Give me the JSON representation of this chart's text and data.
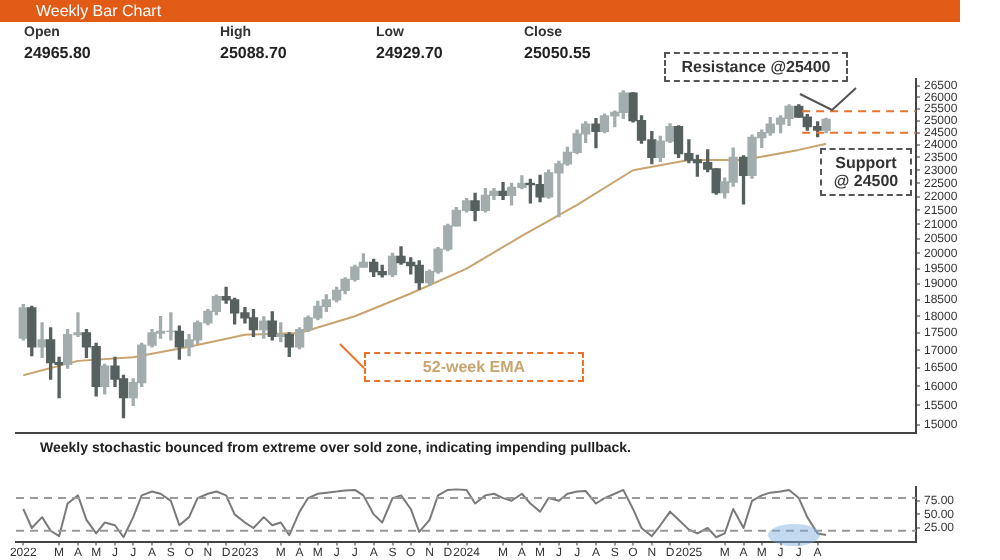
{
  "chart_data": [
    {
      "type": "candlestick",
      "title": "Weekly Bar Chart",
      "colors": [
        "#a3adad",
        "#56605f",
        "#a3adad",
        "#56605f",
        "#56605f",
        "#a3adad",
        "#a3adad",
        "#56605f",
        "#56605f",
        "#a3adad",
        "#56605f",
        "#56605f",
        "#a3adad",
        "#a3adad",
        "#a3adad",
        "#a3adad",
        "#a3adad",
        "#56605f",
        "#a3adad",
        "#a3adad",
        "#a3adad",
        "#a3adad",
        "#56605f",
        "#56605f",
        "#56605f",
        "#56605f",
        "#a3adad",
        "#56605f",
        "#a3adad",
        "#56605f",
        "#a3adad",
        "#a3adad",
        "#a3adad",
        "#a3adad",
        "#a3adad",
        "#a3adad",
        "#a3adad",
        "#a3adad",
        "#56605f",
        "#56605f",
        "#a3adad",
        "#56605f",
        "#56605f",
        "#56605f",
        "#a3adad",
        "#a3adad",
        "#a3adad",
        "#a3adad",
        "#a3adad",
        "#56605f",
        "#a3adad",
        "#a3adad",
        "#56605f",
        "#a3adad",
        "#a3adad",
        "#56605f",
        "#56605f",
        "#a3adad",
        "#a3adad",
        "#a3adad",
        "#a3adad",
        "#a3adad",
        "#56605f",
        "#a3adad",
        "#a3adad",
        "#a3adad",
        "#56605f",
        "#56605f",
        "#56605f",
        "#a3adad",
        "#a3adad",
        "#56605f",
        "#56605f",
        "#56605f",
        "#56605f",
        "#56605f",
        "#a3adad",
        "#a3adad",
        "#56605f",
        "#a3adad",
        "#a3adad",
        "#a3adad",
        "#a3adad",
        "#a3adad",
        "#56605f",
        "#56605f",
        "#56605f",
        "#a3adad"
      ],
      "log": "y",
      "tick_labels": "y",
      "grid": false,
      "legend": false,
      "annotations": [
        "Open",
        "High",
        "Low",
        "Close",
        "24965.80",
        "25088.70",
        "24929.70",
        "25050.55"
      ],
      "x": [
        "2022-01-01",
        "2022-01-15",
        "2022-02-01",
        "2022-02-15",
        "2022-03-01",
        "2022-03-15",
        "2022-04-01",
        "2022-04-15",
        "2022-05-01",
        "2022-05-15",
        "2022-06-01",
        "2022-06-15",
        "2022-07-01",
        "2022-07-15",
        "2022-08-01",
        "2022-08-15",
        "2022-09-01",
        "2022-09-15",
        "2022-10-01",
        "2022-10-15",
        "2022-11-01",
        "2022-11-15",
        "2022-12-01",
        "2022-12-15",
        "2023-01-01",
        "2023-01-15",
        "2023-02-01",
        "2023-02-15",
        "2023-03-01",
        "2023-03-15",
        "2023-04-01",
        "2023-04-15",
        "2023-05-01",
        "2023-05-15",
        "2023-06-01",
        "2023-06-15",
        "2023-07-01",
        "2023-07-15",
        "2023-08-01",
        "2023-08-15",
        "2023-09-01",
        "2023-09-15",
        "2023-10-01",
        "2023-10-15",
        "2023-11-01",
        "2023-11-15",
        "2023-12-01",
        "2023-12-15",
        "2024-01-01",
        "2024-01-15",
        "2024-02-01",
        "2024-02-15",
        "2024-03-01",
        "2024-03-15",
        "2024-04-01",
        "2024-04-15",
        "2024-05-01",
        "2024-05-15",
        "2024-06-01",
        "2024-06-15",
        "2024-07-01",
        "2024-07-15",
        "2024-08-01",
        "2024-08-15",
        "2024-09-01",
        "2024-09-15",
        "2024-10-01",
        "2024-10-15",
        "2024-11-01",
        "2024-11-15",
        "2024-12-01",
        "2024-12-15",
        "2025-01-01",
        "2025-01-15",
        "2025-02-01",
        "2025-02-15",
        "2025-03-01",
        "2025-03-15",
        "2025-04-01",
        "2025-04-15",
        "2025-05-01",
        "2025-05-15",
        "2025-06-01",
        "2025-06-15",
        "2025-07-01",
        "2025-07-15",
        "2025-08-01",
        "2025-08-15"
      ],
      "ohlc": [
        [
          17350,
          18350,
          17300,
          18250
        ],
        [
          18250,
          18300,
          16850,
          17100
        ],
        [
          17100,
          17800,
          16800,
          17300
        ],
        [
          17300,
          17650,
          16200,
          16650
        ],
        [
          16650,
          16800,
          15700,
          16600
        ],
        [
          16600,
          17600,
          16500,
          17450
        ],
        [
          17450,
          18100,
          17400,
          17500
        ],
        [
          17500,
          17600,
          16800,
          17100
        ],
        [
          17100,
          17200,
          15750,
          16000
        ],
        [
          16000,
          16600,
          15800,
          16550
        ],
        [
          16550,
          16800,
          16000,
          16200
        ],
        [
          16200,
          16300,
          15180,
          15700
        ],
        [
          15700,
          16200,
          15500,
          16100
        ],
        [
          16100,
          17200,
          16000,
          17150
        ],
        [
          17150,
          17600,
          17100,
          17500
        ],
        [
          17500,
          17990,
          17350,
          17550
        ],
        [
          17550,
          18100,
          17300,
          17550
        ],
        [
          17550,
          17700,
          16750,
          17100
        ],
        [
          17100,
          17450,
          16850,
          17300
        ],
        [
          17300,
          17850,
          17200,
          17800
        ],
        [
          17800,
          18200,
          17750,
          18150
        ],
        [
          18150,
          18650,
          18050,
          18600
        ],
        [
          18600,
          18890,
          18400,
          18500
        ],
        [
          18500,
          18550,
          17770,
          18100
        ],
        [
          18100,
          18260,
          17800,
          17950
        ],
        [
          17950,
          18200,
          17400,
          17600
        ],
        [
          17600,
          17980,
          17350,
          17850
        ],
        [
          17850,
          18130,
          17300,
          17400
        ],
        [
          17400,
          17800,
          17250,
          17450
        ],
        [
          17450,
          17500,
          16830,
          17100
        ],
        [
          17100,
          17650,
          17050,
          17600
        ],
        [
          17600,
          18000,
          17550,
          17950
        ],
        [
          17950,
          18450,
          17900,
          18300
        ],
        [
          18300,
          18660,
          18150,
          18500
        ],
        [
          18500,
          18890,
          18450,
          18800
        ],
        [
          18800,
          19200,
          18700,
          19150
        ],
        [
          19150,
          19600,
          19100,
          19550
        ],
        [
          19550,
          19990,
          19550,
          19700
        ],
        [
          19700,
          19800,
          19250,
          19400
        ],
        [
          19400,
          19600,
          19230,
          19300
        ],
        [
          19300,
          20000,
          19250,
          19900
        ],
        [
          19900,
          20220,
          19650,
          19700
        ],
        [
          19700,
          19850,
          19330,
          19600
        ],
        [
          19600,
          19750,
          18840,
          19050
        ],
        [
          19050,
          19450,
          18970,
          19400
        ],
        [
          19400,
          20200,
          19350,
          20150
        ],
        [
          20150,
          21000,
          20100,
          20950
        ],
        [
          20950,
          21600,
          20950,
          21500
        ],
        [
          21500,
          21930,
          21450,
          21850
        ],
        [
          21850,
          22120,
          21140,
          21500
        ],
        [
          21500,
          22300,
          21450,
          22050
        ],
        [
          22050,
          22300,
          21900,
          22200
        ],
        [
          22200,
          22530,
          21900,
          22050
        ],
        [
          22050,
          22500,
          21700,
          22350
        ],
        [
          22350,
          22780,
          22300,
          22500
        ],
        [
          22500,
          22650,
          21780,
          22450
        ],
        [
          22450,
          22800,
          21820,
          22000
        ],
        [
          22000,
          23000,
          21950,
          22900
        ],
        [
          22900,
          23340,
          21280,
          23250
        ],
        [
          23250,
          23900,
          23200,
          23700
        ],
        [
          23700,
          24600,
          23650,
          24450
        ],
        [
          24450,
          24950,
          24100,
          24850
        ],
        [
          24850,
          25080,
          23890,
          24550
        ],
        [
          24550,
          25270,
          24500,
          25200
        ],
        [
          25200,
          25400,
          24750,
          25350
        ],
        [
          25350,
          26280,
          25100,
          26180
        ],
        [
          26180,
          26200,
          24950,
          25000
        ],
        [
          25000,
          25200,
          24070,
          24200
        ],
        [
          24200,
          24540,
          23260,
          23500
        ],
        [
          23500,
          24350,
          23350,
          24150
        ],
        [
          24150,
          24860,
          24100,
          24750
        ],
        [
          24750,
          24780,
          23500,
          23650
        ],
        [
          23650,
          24200,
          23300,
          23400
        ],
        [
          23400,
          23580,
          22780,
          23300
        ],
        [
          23300,
          23800,
          22950,
          23050
        ],
        [
          23050,
          23050,
          22100,
          22150
        ],
        [
          22150,
          22700,
          21960,
          22550
        ],
        [
          22550,
          23870,
          22400,
          23500
        ],
        [
          23500,
          23560,
          21740,
          22800
        ],
        [
          22800,
          24400,
          22700,
          24300
        ],
        [
          24300,
          24600,
          23900,
          24500
        ],
        [
          24500,
          25120,
          24400,
          24850
        ],
        [
          24850,
          25200,
          24500,
          25100
        ],
        [
          25100,
          25670,
          24800,
          25600
        ],
        [
          25600,
          25670,
          25150,
          25150
        ],
        [
          25150,
          25250,
          24600,
          24750
        ],
        [
          24750,
          24950,
          24340,
          24600
        ],
        [
          24600,
          25090,
          24500,
          25050
        ]
      ],
      "series": [
        {
          "type": "line",
          "name": "52-week EMA",
          "color": "#c9a46e",
          "x": [
            "2022-01-01",
            "2022-04-01",
            "2022-07-01",
            "2022-10-01",
            "2023-01-01",
            "2023-04-01",
            "2023-07-01",
            "2023-10-01",
            "2024-01-01",
            "2024-04-01",
            "2024-07-01",
            "2024-10-01",
            "2025-01-01",
            "2025-04-01",
            "2025-07-01",
            "2025-08-15"
          ],
          "values": [
            16300,
            16700,
            16800,
            17100,
            17450,
            17500,
            18000,
            18700,
            19500,
            20600,
            21700,
            23000,
            23400,
            23400,
            23800,
            24050
          ]
        }
      ],
      "xlim": [
        "2021-12-20",
        "2026-01-10"
      ],
      "ylim": [
        14800,
        26800
      ],
      "yticks": [
        15000,
        15500,
        16000,
        16500,
        17000,
        17500,
        18000,
        18500,
        19000,
        19500,
        20000,
        20500,
        21000,
        21500,
        22000,
        22500,
        23000,
        23500,
        24000,
        24500,
        25000,
        25500,
        26000,
        26500
      ],
      "ref_lines": [
        {
          "axis": "y",
          "value": 25400,
          "label": "Resistance @25400",
          "color": "#e8742c",
          "line_style": "dashed"
        },
        {
          "axis": "y",
          "value": 24500,
          "label": "Support @ 24500",
          "color": "#e8742c",
          "line_style": "dashed"
        }
      ]
    },
    {
      "type": "line",
      "grid": false,
      "legend": false,
      "line_style": "solid",
      "marker": "none",
      "annotations": [
        "Weekly stochastic bounced from extreme over sold zone, indicating impending pullback."
      ],
      "x": [
        "2022-01-01",
        "2022-01-15",
        "2022-02-01",
        "2022-02-15",
        "2022-03-01",
        "2022-03-15",
        "2022-04-01",
        "2022-04-15",
        "2022-05-01",
        "2022-05-15",
        "2022-06-01",
        "2022-06-15",
        "2022-07-01",
        "2022-07-15",
        "2022-08-01",
        "2022-08-15",
        "2022-09-01",
        "2022-09-15",
        "2022-10-01",
        "2022-10-15",
        "2022-11-01",
        "2022-11-15",
        "2022-12-01",
        "2022-12-15",
        "2023-01-01",
        "2023-01-15",
        "2023-02-01",
        "2023-02-15",
        "2023-03-01",
        "2023-03-15",
        "2023-04-01",
        "2023-04-15",
        "2023-05-01",
        "2023-05-15",
        "2023-06-01",
        "2023-06-15",
        "2023-07-01",
        "2023-07-15",
        "2023-08-01",
        "2023-08-15",
        "2023-09-01",
        "2023-09-15",
        "2023-10-01",
        "2023-10-15",
        "2023-11-01",
        "2023-11-15",
        "2023-12-01",
        "2023-12-15",
        "2024-01-01",
        "2024-01-15",
        "2024-02-01",
        "2024-02-15",
        "2024-03-01",
        "2024-03-15",
        "2024-04-01",
        "2024-04-15",
        "2024-05-01",
        "2024-05-15",
        "2024-06-01",
        "2024-06-15",
        "2024-07-01",
        "2024-07-15",
        "2024-08-01",
        "2024-08-15",
        "2024-09-01",
        "2024-09-15",
        "2024-10-01",
        "2024-10-15",
        "2024-11-01",
        "2024-11-15",
        "2024-12-01",
        "2024-12-15",
        "2025-01-01",
        "2025-01-15",
        "2025-02-01",
        "2025-02-15",
        "2025-03-01",
        "2025-03-15",
        "2025-04-01",
        "2025-04-15",
        "2025-05-01",
        "2025-05-15",
        "2025-06-01",
        "2025-06-15",
        "2025-07-01",
        "2025-07-15",
        "2025-08-01",
        "2025-08-15"
      ],
      "series": [
        {
          "color": "#7a7a7a",
          "values": [
            60,
            25,
            45,
            20,
            10,
            70,
            85,
            40,
            15,
            35,
            30,
            8,
            45,
            85,
            92,
            88,
            75,
            30,
            45,
            80,
            88,
            92,
            85,
            50,
            35,
            25,
            45,
            30,
            35,
            12,
            55,
            80,
            88,
            90,
            92,
            94,
            95,
            85,
            50,
            35,
            80,
            85,
            60,
            18,
            40,
            85,
            95,
            96,
            95,
            70,
            85,
            88,
            80,
            75,
            88,
            70,
            55,
            80,
            75,
            88,
            92,
            93,
            70,
            80,
            88,
            95,
            60,
            25,
            10,
            30,
            55,
            40,
            22,
            15,
            25,
            8,
            15,
            60,
            25,
            75,
            85,
            90,
            92,
            95,
            80,
            45,
            15,
            12
          ]
        }
      ],
      "xlim": [
        "2021-12-20",
        "2026-01-10"
      ],
      "ylim": [
        0,
        100
      ],
      "yticks": [
        {
          "value": 25,
          "label": "25.00"
        },
        {
          "value": 50,
          "label": "50.00"
        },
        {
          "value": 75,
          "label": "75.00"
        }
      ],
      "xticks": [
        {
          "value": "2022-01-01",
          "label": "2022"
        },
        {
          "value": "2022-03-01",
          "label": "M"
        },
        {
          "value": "2022-04-01",
          "label": "A"
        },
        {
          "value": "2022-05-01",
          "label": "M"
        },
        {
          "value": "2022-06-01",
          "label": "J"
        },
        {
          "value": "2022-07-01",
          "label": "J"
        },
        {
          "value": "2022-08-01",
          "label": "A"
        },
        {
          "value": "2022-09-01",
          "label": "S"
        },
        {
          "value": "2022-10-01",
          "label": "O"
        },
        {
          "value": "2022-11-01",
          "label": "N"
        },
        {
          "value": "2022-12-01",
          "label": "D"
        },
        {
          "value": "2023-01-01",
          "label": "2023"
        },
        {
          "value": "2023-03-01",
          "label": "M"
        },
        {
          "value": "2023-04-01",
          "label": "A"
        },
        {
          "value": "2023-05-01",
          "label": "M"
        },
        {
          "value": "2023-06-01",
          "label": "J"
        },
        {
          "value": "2023-07-01",
          "label": "J"
        },
        {
          "value": "2023-08-01",
          "label": "A"
        },
        {
          "value": "2023-09-01",
          "label": "S"
        },
        {
          "value": "2023-10-01",
          "label": "O"
        },
        {
          "value": "2023-11-01",
          "label": "N"
        },
        {
          "value": "2023-12-01",
          "label": "D"
        },
        {
          "value": "2024-01-01",
          "label": "2024"
        },
        {
          "value": "2024-03-01",
          "label": "M"
        },
        {
          "value": "2024-04-01",
          "label": "A"
        },
        {
          "value": "2024-05-01",
          "label": "M"
        },
        {
          "value": "2024-06-01",
          "label": "J"
        },
        {
          "value": "2024-07-01",
          "label": "J"
        },
        {
          "value": "2024-08-01",
          "label": "A"
        },
        {
          "value": "2024-09-01",
          "label": "S"
        },
        {
          "value": "2024-10-01",
          "label": "O"
        },
        {
          "value": "2024-11-01",
          "label": "N"
        },
        {
          "value": "2024-12-01",
          "label": "D"
        },
        {
          "value": "2025-01-01",
          "label": "2025"
        },
        {
          "value": "2025-03-01",
          "label": "M"
        },
        {
          "value": "2025-04-01",
          "label": "A"
        },
        {
          "value": "2025-05-01",
          "label": "M"
        },
        {
          "value": "2025-06-01",
          "label": "J"
        },
        {
          "value": "2025-07-01",
          "label": "J"
        },
        {
          "value": "2025-08-01",
          "label": "A"
        }
      ],
      "ref_lines": [
        {
          "axis": "y",
          "value": 80,
          "color": "#999999",
          "line_style": "dashed"
        },
        {
          "axis": "y",
          "value": 20,
          "color": "#999999",
          "line_style": "dashed"
        }
      ]
    }
  ]
}
